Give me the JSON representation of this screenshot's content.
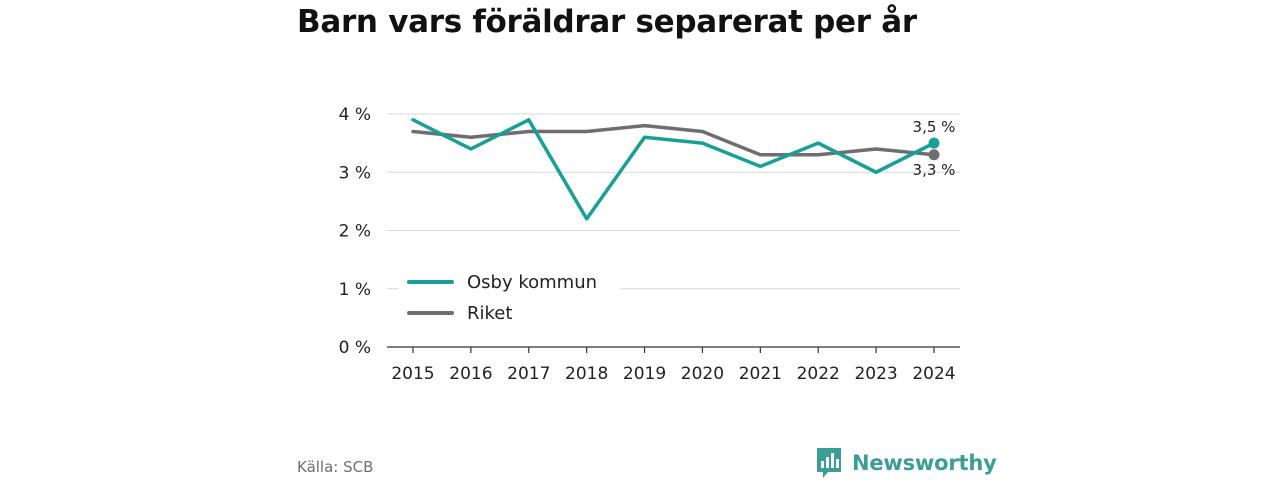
{
  "colors": {
    "osby": "#16a096",
    "riket": "#6e6e70",
    "grid": "#d9d9d9",
    "brand": "#3a9e96"
  },
  "chart_data": {
    "type": "line",
    "title": "Barn vars föräldrar separerat per år",
    "xlabel": "",
    "ylabel": "",
    "x": [
      "2015",
      "2016",
      "2017",
      "2018",
      "2019",
      "2020",
      "2021",
      "2022",
      "2023",
      "2024"
    ],
    "ylim": [
      0,
      4
    ],
    "y_ticks": [
      "0 %",
      "1 %",
      "2 %",
      "3 %",
      "4 %"
    ],
    "grid": true,
    "legend_position": "bottom-left",
    "series": [
      {
        "name": "Osby kommun",
        "values": [
          3.9,
          3.4,
          3.9,
          2.2,
          3.6,
          3.5,
          3.1,
          3.5,
          3.0,
          3.5
        ],
        "end_label": "3,5 %"
      },
      {
        "name": "Riket",
        "values": [
          3.7,
          3.6,
          3.7,
          3.7,
          3.8,
          3.7,
          3.3,
          3.3,
          3.4,
          3.3
        ],
        "end_label": "3,3 %"
      }
    ]
  },
  "source": "Källa: SCB",
  "brand": {
    "name": "Newsworthy",
    "icon": "bar-chart-logo-icon"
  }
}
